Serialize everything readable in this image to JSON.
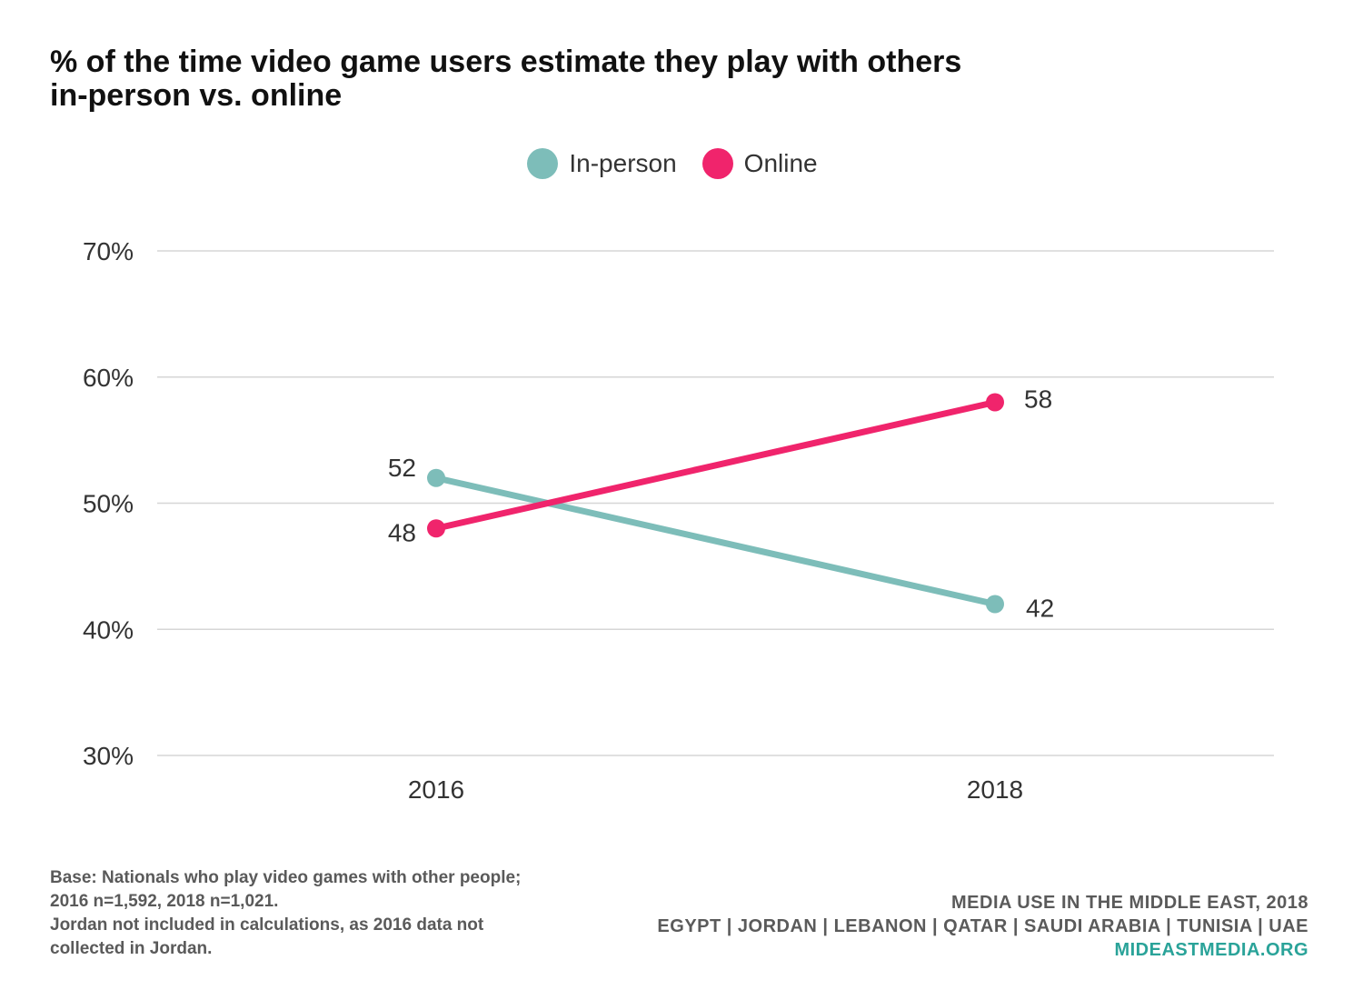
{
  "chart_data": {
    "type": "line",
    "title": "% of the time video game users estimate they play with others in-person vs. online",
    "title_lines": [
      "% of the time video game users estimate they play with others",
      "in-person vs. online"
    ],
    "x": [
      "2016",
      "2018"
    ],
    "series": [
      {
        "name": "In-person",
        "color": "#7dbdb9",
        "values": [
          52,
          42
        ],
        "labels": [
          "52",
          "42"
        ]
      },
      {
        "name": "Online",
        "color": "#f0246c",
        "values": [
          48,
          58
        ],
        "labels": [
          "48",
          "58"
        ]
      }
    ],
    "ylim": [
      30,
      70
    ],
    "yticks": [
      30,
      40,
      50,
      60,
      70
    ],
    "ytick_labels": [
      "30%",
      "40%",
      "50%",
      "60%",
      "70%"
    ],
    "xlabel": "",
    "ylabel": "",
    "grid": true,
    "legend": "top-center"
  },
  "footnote": [
    "Base: Nationals who play video games with other people;",
    "2016 n=1,592, 2018 n=1,021.",
    "Jordan not included in calculations, as 2016 data not",
    "collected in Jordan."
  ],
  "credits": {
    "line1": "MEDIA USE IN THE MIDDLE EAST, 2018",
    "line2": "EGYPT | JORDAN | LEBANON | QATAR | SAUDI ARABIA | TUNISIA | UAE",
    "site": "MIDEASTMEDIA.ORG",
    "site_color": "#2aa399"
  }
}
